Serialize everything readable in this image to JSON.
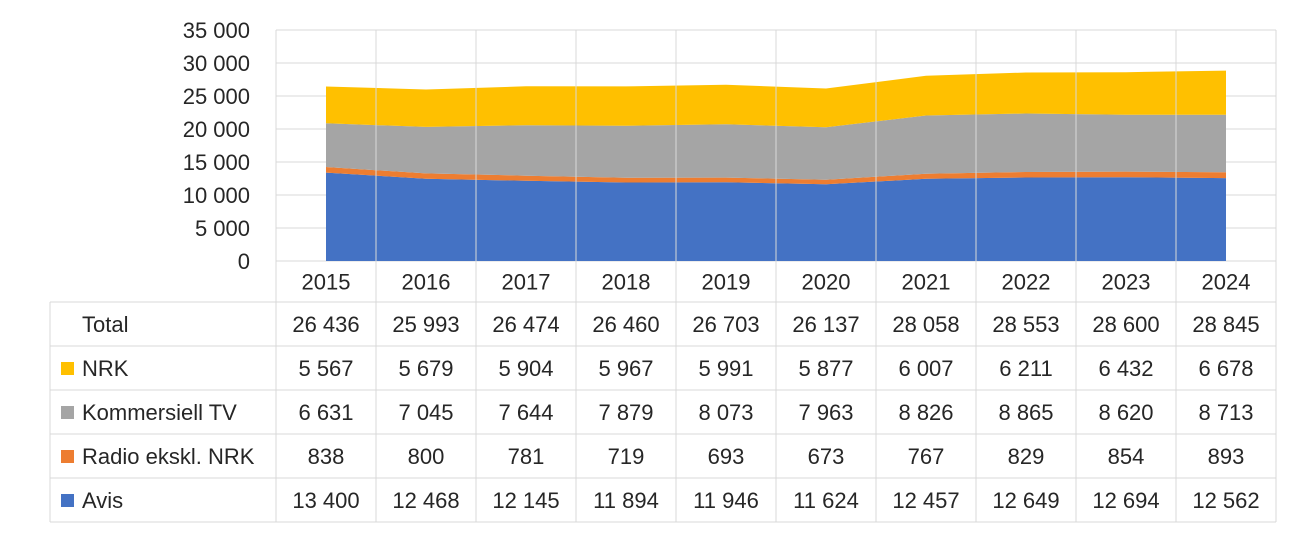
{
  "chart_data": {
    "type": "area",
    "stacked": true,
    "categories": [
      "2015",
      "2016",
      "2017",
      "2018",
      "2019",
      "2020",
      "2021",
      "2022",
      "2023",
      "2024"
    ],
    "ylim": [
      0,
      35000
    ],
    "yticks": [
      0,
      5000,
      10000,
      15000,
      20000,
      25000,
      30000,
      35000
    ],
    "ytick_labels": [
      "0",
      "5 000",
      "10 000",
      "15 000",
      "20 000",
      "25 000",
      "30 000",
      "35 000"
    ],
    "grid": true,
    "series": [
      {
        "name": "Avis",
        "color": "#4472C4",
        "values": [
          13400,
          12468,
          12145,
          11894,
          11946,
          11624,
          12457,
          12649,
          12694,
          12562
        ],
        "labels": [
          "13 400",
          "12 468",
          "12 145",
          "11 894",
          "11 946",
          "11 624",
          "12 457",
          "12 649",
          "12 694",
          "12 562"
        ]
      },
      {
        "name": "Radio ekskl. NRK",
        "color": "#ED7D31",
        "values": [
          838,
          800,
          781,
          719,
          693,
          673,
          767,
          829,
          854,
          893
        ],
        "labels": [
          "838",
          "800",
          "781",
          "719",
          "693",
          "673",
          "767",
          "829",
          "854",
          "893"
        ]
      },
      {
        "name": "Kommersiell TV",
        "color": "#A5A5A5",
        "values": [
          6631,
          7045,
          7644,
          7879,
          8073,
          7963,
          8826,
          8865,
          8620,
          8713
        ],
        "labels": [
          "6 631",
          "7 045",
          "7 644",
          "7 879",
          "8 073",
          "7 963",
          "8 826",
          "8 865",
          "8 620",
          "8 713"
        ]
      },
      {
        "name": "NRK",
        "color": "#FFC000",
        "values": [
          5567,
          5679,
          5904,
          5967,
          5991,
          5877,
          6007,
          6211,
          6432,
          6678
        ],
        "labels": [
          "5 567",
          "5 679",
          "5 904",
          "5 967",
          "5 991",
          "5 877",
          "6 007",
          "6 211",
          "6 432",
          "6 678"
        ]
      }
    ],
    "total": {
      "name": "Total",
      "values": [
        26436,
        25993,
        26474,
        26460,
        26703,
        26137,
        28058,
        28553,
        28600,
        28845
      ],
      "labels": [
        "26 436",
        "25 993",
        "26 474",
        "26 460",
        "26 703",
        "26 137",
        "28 058",
        "28 553",
        "28 600",
        "28 845"
      ]
    },
    "table_rows": [
      "total",
      "NRK",
      "Kommersiell TV",
      "Radio ekskl. NRK",
      "Avis"
    ]
  }
}
